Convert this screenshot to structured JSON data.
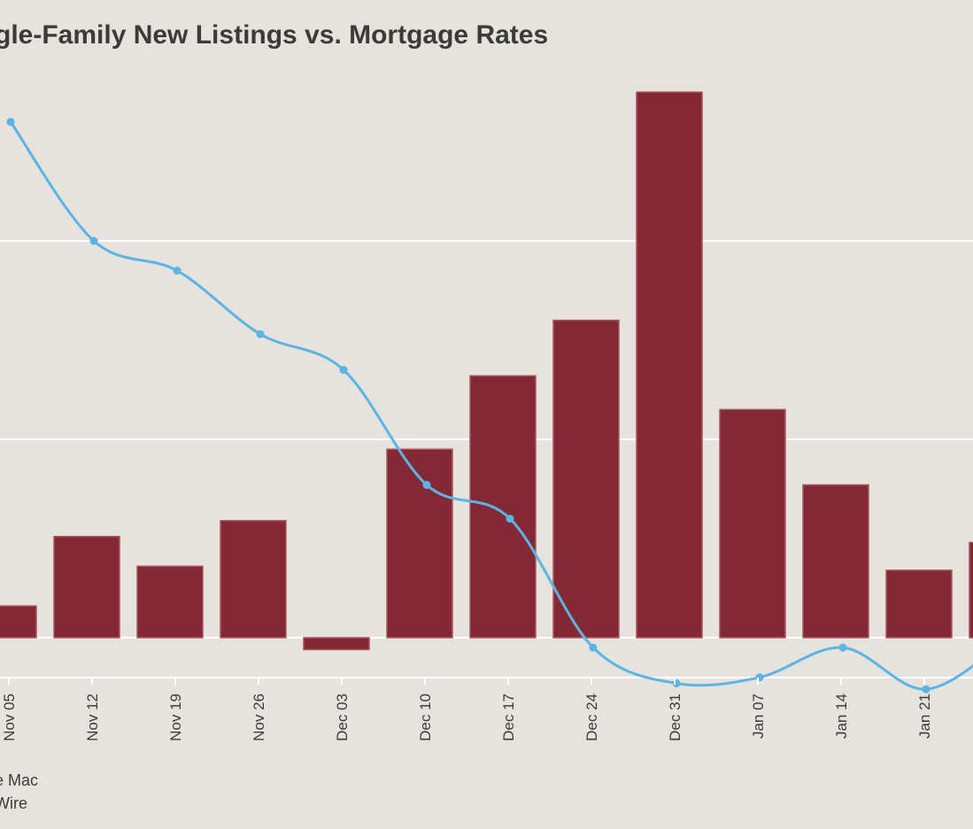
{
  "title": "gle-Family New Listings vs. Mortgage Rates",
  "source_lines": [
    "e Mac",
    "Wire"
  ],
  "colors": {
    "background": "#e6e2dd",
    "bar": "#842833",
    "line": "#5cb4e4",
    "grid": "#ffffff",
    "text": "#3b3b3b"
  },
  "chart_data": {
    "type": "bar+line",
    "title": "gle-Family New Listings vs. Mortgage Rates",
    "categories": [
      "Nov 05",
      "Nov 12",
      "Nov 19",
      "Nov 26",
      "Dec 03",
      "Dec 10",
      "Dec 17",
      "Dec 24",
      "Dec 31",
      "Jan 07",
      "Jan 14",
      "Jan 21",
      ""
    ],
    "grid": true,
    "legend": "none",
    "series": [
      {
        "type": "bar",
        "color": "#842833",
        "values": [
          0.16,
          0.51,
          0.36,
          0.59,
          -0.06,
          0.95,
          1.32,
          1.6,
          2.75,
          1.15,
          0.77,
          0.34,
          0.48
        ],
        "ylim": [
          -0.25,
          2.85
        ]
      },
      {
        "type": "line",
        "color": "#5cb4e4",
        "values": [
          2.6,
          2.0,
          1.85,
          1.53,
          1.35,
          0.77,
          0.6,
          -0.05,
          -0.23,
          -0.2,
          -0.05,
          -0.26,
          0.0
        ],
        "ylim": [
          -0.25,
          2.85
        ]
      }
    ]
  }
}
